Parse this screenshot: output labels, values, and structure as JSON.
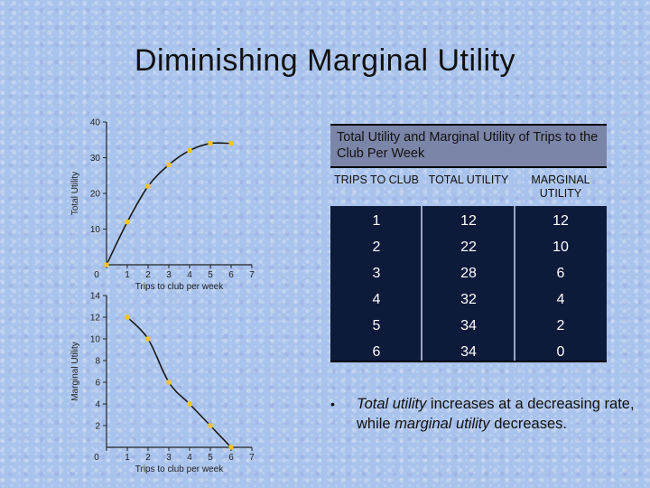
{
  "slide": {
    "title": "Diminishing Marginal Utility"
  },
  "table": {
    "caption": "Total Utility and Marginal Utility of Trips to the Club Per Week",
    "headers": [
      "TRIPS TO CLUB",
      "TOTAL UTILITY",
      "MARGINAL UTILITY"
    ],
    "rows": [
      [
        "1",
        "12",
        "12"
      ],
      [
        "2",
        "22",
        "10"
      ],
      [
        "3",
        "28",
        "6"
      ],
      [
        "4",
        "32",
        "4"
      ],
      [
        "5",
        "34",
        "2"
      ],
      [
        "6",
        "34",
        "0"
      ]
    ]
  },
  "note": {
    "bullet": "•",
    "part1": "Total utility",
    "part2": " increases at a decreasing rate, while ",
    "part3": "marginal utility",
    "part4": " decreases."
  },
  "colors": {
    "point": "#f2c42a",
    "axis": "#222222",
    "curve": "#1a1a1a"
  },
  "chart_data": [
    {
      "type": "line",
      "title": "",
      "xlabel": "Trips to club per week",
      "ylabel": "Total Utility",
      "x": [
        0,
        1,
        2,
        3,
        4,
        5,
        6
      ],
      "series": [
        {
          "values": [
            0,
            12,
            22,
            28,
            32,
            34,
            34
          ]
        }
      ],
      "xlim": [
        0,
        7
      ],
      "ylim": [
        0,
        40
      ],
      "xticks": [
        "0",
        "1",
        "2",
        "3",
        "4",
        "5",
        "6",
        "7"
      ],
      "yticks": [
        "10",
        "20",
        "30",
        "40"
      ],
      "grid": false
    },
    {
      "type": "line",
      "title": "",
      "xlabel": "Trips to club per week",
      "ylabel": "Marginal Utility",
      "x": [
        1,
        2,
        3,
        4,
        5,
        6
      ],
      "series": [
        {
          "values": [
            12,
            10,
            6,
            4,
            2,
            0
          ]
        }
      ],
      "xlim": [
        0,
        7
      ],
      "ylim": [
        0,
        14
      ],
      "xticks": [
        "0",
        "1",
        "2",
        "3",
        "4",
        "5",
        "6",
        "7"
      ],
      "yticks": [
        "2",
        "4",
        "6",
        "8",
        "10",
        "12",
        "14"
      ],
      "grid": false
    }
  ]
}
